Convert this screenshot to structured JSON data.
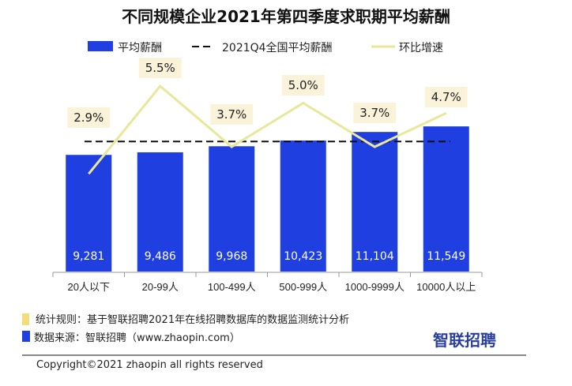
{
  "chart_data": {
    "type": "bar",
    "title": "不同规模企业2021年第四季度求职期平均薪酬",
    "categories": [
      "20人以下",
      "20-99人",
      "100-499人",
      "500-999人",
      "1000-9999人",
      "10000人以上"
    ],
    "series": [
      {
        "name": "平均薪酬",
        "type": "bar",
        "values": [
          9281,
          9486,
          9968,
          10423,
          11104,
          11549
        ],
        "labels": [
          "9,281",
          "9,486",
          "9,968",
          "10,423",
          "11,104",
          "11,549"
        ],
        "color": "#1f3fe0"
      },
      {
        "name": "2021Q4全国平均薪酬",
        "type": "reference-line",
        "value": 10350,
        "color": "#111111",
        "style": "dashed"
      },
      {
        "name": "环比增速",
        "type": "line",
        "values": [
          2.9,
          5.5,
          3.7,
          5.0,
          3.7,
          4.7
        ],
        "labels": [
          "2.9%",
          "5.5%",
          "3.7%",
          "5.0%",
          "3.7%",
          "4.7%"
        ],
        "unit": "%",
        "color": "#e8e79a",
        "axis": "secondary"
      }
    ],
    "ylim": [
      0,
      11549
    ],
    "legend": "top",
    "grid": false
  },
  "footer": {
    "rule_note": "统计规则：基于智联招聘2021年在线招聘数据库的数据监测统计分析",
    "source_note": "数据来源：智联招聘（www.zhaopin.com）",
    "logo": "智联招聘",
    "copyright": "Copyright©2021 zhaopin all rights reserved",
    "rule_color": "#f3dc7a",
    "source_color": "#1f3fe0"
  }
}
